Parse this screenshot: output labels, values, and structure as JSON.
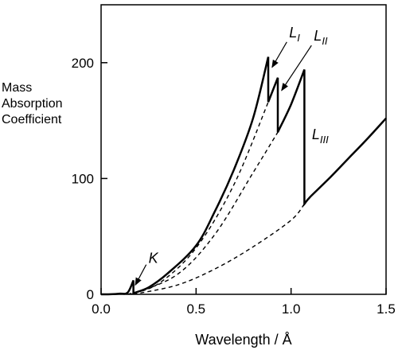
{
  "chart_data": {
    "type": "line",
    "title": "",
    "xlabel": "Wavelength / Å",
    "ylabel_lines": [
      "Mass",
      "Absorption",
      "Coefficient"
    ],
    "xlim": [
      0.0,
      1.5
    ],
    "ylim": [
      0,
      250
    ],
    "x_ticks": [
      0.0,
      0.5,
      1.0,
      1.5
    ],
    "x_tick_labels": [
      "0.0",
      "0.5",
      "1.0",
      "1.5"
    ],
    "y_ticks": [
      0,
      100,
      200
    ],
    "y_tick_labels": [
      "0",
      "100",
      "200"
    ],
    "grid": false,
    "legend": "none",
    "series": [
      {
        "style": "solid",
        "points": [
          [
            0.0,
            0
          ],
          [
            0.05,
            0.05
          ],
          [
            0.1,
            0.6
          ],
          [
            0.14,
            1.5
          ],
          [
            0.17,
            12
          ],
          [
            0.17,
            1
          ],
          [
            0.25,
            6
          ],
          [
            0.35,
            18
          ],
          [
            0.5,
            42
          ],
          [
            0.6,
            72
          ],
          [
            0.7,
            108
          ],
          [
            0.8,
            152
          ],
          [
            0.88,
            205
          ],
          [
            0.88,
            166
          ],
          [
            0.93,
            187
          ],
          [
            0.93,
            140
          ],
          [
            1.0,
            164
          ],
          [
            1.07,
            194
          ],
          [
            1.07,
            78
          ],
          [
            1.1,
            84
          ],
          [
            1.2,
            100
          ],
          [
            1.3,
            117
          ],
          [
            1.4,
            134
          ],
          [
            1.5,
            152
          ]
        ]
      },
      {
        "style": "dashed",
        "points": [
          [
            0.14,
            0
          ],
          [
            0.3,
            9
          ],
          [
            0.5,
            40
          ],
          [
            0.7,
            95
          ],
          [
            0.88,
            166
          ]
        ]
      },
      {
        "style": "dashed",
        "points": [
          [
            0.16,
            0
          ],
          [
            0.4,
            17
          ],
          [
            0.6,
            52
          ],
          [
            0.8,
            105
          ],
          [
            0.93,
            140
          ]
        ]
      },
      {
        "style": "dashed",
        "points": [
          [
            0.17,
            0
          ],
          [
            0.4,
            8
          ],
          [
            0.6,
            22
          ],
          [
            0.8,
            41
          ],
          [
            1.0,
            64
          ],
          [
            1.07,
            78
          ]
        ]
      }
    ],
    "annotations": [
      {
        "label": "K",
        "sub": "",
        "label_x": 0.25,
        "label_y": 27,
        "arrow_to_x": 0.18,
        "arrow_to_y": 8
      },
      {
        "label": "L",
        "sub": "I",
        "label_x": 0.99,
        "label_y": 222,
        "arrow_to_x": 0.9,
        "arrow_to_y": 196
      },
      {
        "label": "L",
        "sub": "II",
        "label_x": 1.12,
        "label_y": 219,
        "arrow_to_x": 0.95,
        "arrow_to_y": 176
      },
      {
        "label": "L",
        "sub": "III",
        "label_x": 1.11,
        "label_y": 134,
        "arrow_to_x": null,
        "arrow_to_y": null
      }
    ]
  }
}
